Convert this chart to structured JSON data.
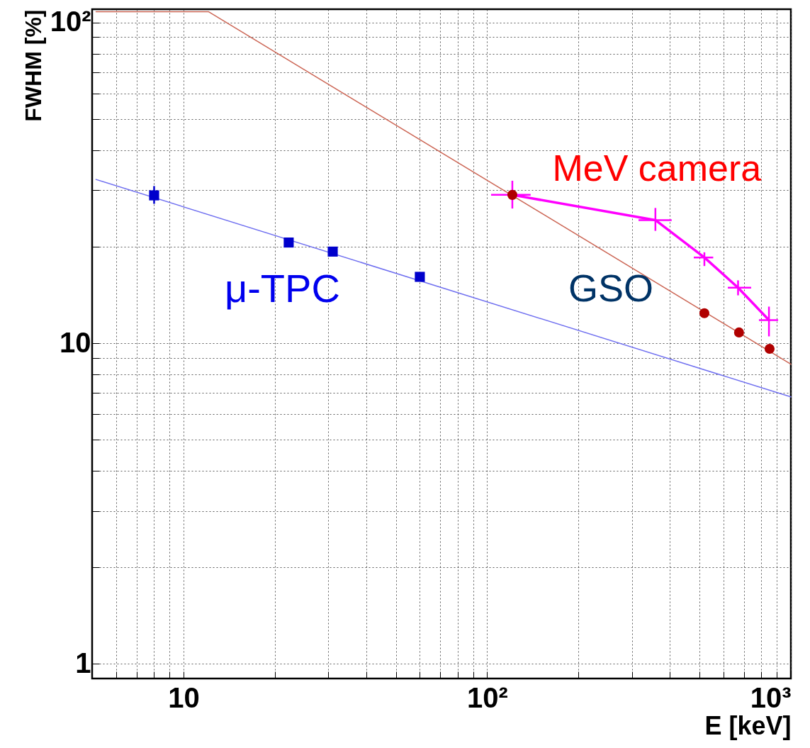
{
  "chart_data": {
    "type": "scatter",
    "xlabel": "E [keV]",
    "ylabel": "FWHM [%]",
    "log": "xy",
    "grid": true,
    "xlim": [
      5,
      1000
    ],
    "ylim": [
      0.9,
      110
    ],
    "xticks": [
      {
        "value": 6,
        "label": null
      },
      {
        "value": 7,
        "label": null
      },
      {
        "value": 8,
        "label": null
      },
      {
        "value": 9,
        "label": null
      },
      10,
      {
        "value": 20,
        "label": null
      },
      {
        "value": 30,
        "label": null
      },
      {
        "value": 40,
        "label": null
      },
      {
        "value": 50,
        "label": null
      },
      {
        "value": 60,
        "label": null
      },
      {
        "value": 70,
        "label": null
      },
      {
        "value": 80,
        "label": null
      },
      {
        "value": 90,
        "label": null
      },
      {
        "value": 100,
        "label": "10²"
      },
      {
        "value": 200,
        "label": null
      },
      {
        "value": 300,
        "label": null
      },
      {
        "value": 400,
        "label": null
      },
      {
        "value": 500,
        "label": null
      },
      {
        "value": 600,
        "label": null
      },
      {
        "value": 700,
        "label": null
      },
      {
        "value": 800,
        "label": null
      },
      {
        "value": 900,
        "label": null
      },
      {
        "value": 1000,
        "label": "10³"
      }
    ],
    "yticks": [
      1,
      {
        "value": 2,
        "label": null
      },
      {
        "value": 3,
        "label": null
      },
      {
        "value": 4,
        "label": null
      },
      {
        "value": 5,
        "label": null
      },
      {
        "value": 6,
        "label": null
      },
      {
        "value": 7,
        "label": null
      },
      {
        "value": 8,
        "label": null
      },
      {
        "value": 9,
        "label": null
      },
      10,
      {
        "value": 20,
        "label": null
      },
      {
        "value": 30,
        "label": null
      },
      {
        "value": 40,
        "label": null
      },
      {
        "value": 50,
        "label": null
      },
      {
        "value": 60,
        "label": null
      },
      {
        "value": 70,
        "label": null
      },
      {
        "value": 80,
        "label": null
      },
      {
        "value": 90,
        "label": null
      },
      {
        "value": 100,
        "label": "10²"
      }
    ],
    "series": [
      {
        "name": "μ-TPC",
        "type": "scatter",
        "marker": "square",
        "color": "#0000cc",
        "x": [
          8,
          22.2,
          31,
          60
        ],
        "values": [
          28.9,
          20.6,
          19.3,
          16.1
        ],
        "errors": [
          [
            27.2,
            30.9
          ],
          null,
          null,
          null
        ]
      },
      {
        "type": "line",
        "marker": "none",
        "color": "#7070f0",
        "x": [
          5.15,
          1000
        ],
        "values": [
          32.4,
          6.8
        ]
      },
      {
        "name": "GSO",
        "type": "scatter",
        "marker": "circle",
        "color": "#b00000",
        "x": [
          121,
          519,
          675,
          851
        ],
        "values": [
          29.0,
          12.4,
          10.8,
          9.6
        ]
      },
      {
        "type": "line",
        "marker": "none",
        "color": "#cc6655",
        "x": [
          5.15,
          12.1,
          1000
        ],
        "values": [
          108,
          108,
          8.6
        ]
      },
      {
        "name": "MeV camera",
        "type": "line",
        "marker": "none",
        "color": "#ff00ff",
        "x": [
          121,
          358,
          519,
          670,
          847
        ],
        "values": [
          29.0,
          24.2,
          18.5,
          14.9,
          11.8
        ],
        "errors": [
          [
            26.3,
            32.1
          ],
          [
            22.4,
            26.4
          ],
          [
            17.4,
            19.2
          ],
          [
            14.1,
            15.7
          ],
          [
            10.5,
            13.0
          ]
        ],
        "xerrors": [
          [
            103,
            139
          ],
          [
            315,
            405
          ],
          [
            479,
            555
          ],
          [
            620,
            740
          ],
          [
            785,
            908
          ]
        ]
      }
    ]
  }
}
